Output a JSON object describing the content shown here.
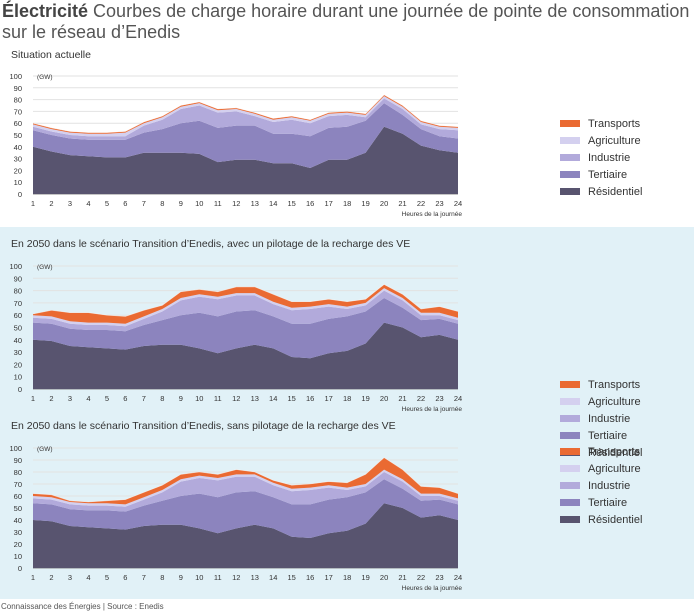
{
  "header": {
    "title_bold": "Électricité",
    "title_rest": " Courbes de charge horaire durant une journée de pointe de consommation sur le réseau d’Enedis"
  },
  "footer": "Connaissance des Énergies | Source : Enedis",
  "colors": {
    "Résidentiel": "#58546f",
    "Tertiaire": "#8c84be",
    "Industrie": "#b2aadb",
    "Agriculture": "#d4d0ef",
    "Transports": "#ea6a32"
  },
  "chart_data": [
    {
      "type": "area",
      "stacked": true,
      "title": "Situation actuelle",
      "ylabel": "(GW)",
      "xlabel": "Heures de la journée",
      "ylim": [
        0,
        100
      ],
      "yticks": [
        0,
        10,
        20,
        30,
        40,
        50,
        60,
        70,
        80,
        90,
        100
      ],
      "x": [
        1,
        2,
        3,
        4,
        5,
        6,
        7,
        8,
        9,
        10,
        11,
        12,
        13,
        14,
        15,
        16,
        17,
        18,
        19,
        20,
        21,
        22,
        23,
        24
      ],
      "legend": [
        "Transports",
        "Agriculture",
        "Industrie",
        "Tertiaire",
        "Résidentiel"
      ],
      "series": [
        {
          "name": "Résidentiel",
          "values": [
            40,
            36,
            33,
            32,
            31,
            31,
            35,
            35,
            35,
            34,
            27,
            29,
            29,
            26,
            26,
            22,
            29,
            29,
            35,
            57,
            51,
            41,
            37,
            35
          ]
        },
        {
          "name": "Tertiaire",
          "values": [
            14,
            14,
            14,
            14,
            15,
            15,
            17,
            20,
            25,
            28,
            29,
            29,
            29,
            25,
            25,
            27,
            27,
            28,
            27,
            20,
            16,
            14,
            12,
            12
          ]
        },
        {
          "name": "Industrie",
          "values": [
            3,
            3,
            3,
            3,
            3,
            3,
            6,
            8,
            12,
            13,
            13,
            12,
            8,
            10,
            12,
            11,
            10,
            10,
            3,
            4,
            5,
            4,
            6,
            7
          ]
        },
        {
          "name": "Agriculture",
          "values": [
            2,
            2,
            2,
            2,
            2,
            3,
            2,
            2,
            2,
            2,
            2,
            2,
            2,
            2,
            2,
            2,
            2,
            2,
            2,
            2,
            2,
            2,
            2,
            2
          ]
        },
        {
          "name": "Transports",
          "values": [
            1,
            1,
            1,
            1,
            1,
            1,
            1,
            1,
            1,
            1,
            1,
            1,
            1,
            1,
            1,
            1,
            1,
            1,
            1,
            1,
            1,
            1,
            1,
            1
          ]
        }
      ]
    },
    {
      "type": "area",
      "stacked": true,
      "title": "En 2050 dans le scénario Transition d’Enedis, avec un pilotage de la recharge des VE",
      "ylabel": "(GW)",
      "xlabel": "Heures de la journée",
      "ylim": [
        0,
        100
      ],
      "yticks": [
        0,
        10,
        20,
        30,
        40,
        50,
        60,
        70,
        80,
        90,
        100
      ],
      "x": [
        1,
        2,
        3,
        4,
        5,
        6,
        7,
        8,
        9,
        10,
        11,
        12,
        13,
        14,
        15,
        16,
        17,
        18,
        19,
        20,
        21,
        22,
        23,
        24
      ],
      "legend": [
        "Transports",
        "Agriculture",
        "Industrie",
        "Tertiaire",
        "Résidentiel"
      ],
      "series": [
        {
          "name": "Résidentiel",
          "values": [
            40,
            39,
            35,
            34,
            33,
            32,
            35,
            36,
            36,
            33,
            29,
            33,
            36,
            33,
            26,
            25,
            29,
            31,
            37,
            54,
            50,
            42,
            44,
            40
          ]
        },
        {
          "name": "Tertiaire",
          "values": [
            14,
            14,
            14,
            14,
            15,
            15,
            17,
            20,
            24,
            29,
            30,
            30,
            28,
            26,
            27,
            28,
            28,
            28,
            26,
            20,
            16,
            14,
            13,
            13
          ]
        },
        {
          "name": "Industrie",
          "values": [
            4,
            4,
            4,
            4,
            4,
            4,
            5,
            7,
            12,
            13,
            14,
            13,
            12,
            10,
            11,
            12,
            10,
            6,
            5,
            6,
            6,
            4,
            3,
            3
          ]
        },
        {
          "name": "Agriculture",
          "values": [
            2,
            2,
            2,
            2,
            2,
            2,
            2,
            2,
            2,
            2,
            2,
            2,
            2,
            2,
            2,
            2,
            2,
            2,
            2,
            2,
            2,
            2,
            2,
            2
          ]
        },
        {
          "name": "Transports",
          "values": [
            1,
            5,
            7,
            8,
            6,
            6,
            5,
            3,
            5,
            4,
            4,
            5,
            5,
            6,
            5,
            4,
            4,
            4,
            3,
            3,
            3,
            3,
            5,
            5
          ]
        }
      ]
    },
    {
      "type": "area",
      "stacked": true,
      "title": "En 2050 dans le scénario Transition d’Enedis, sans pilotage de la recharge des VE",
      "ylabel": "(GW)",
      "xlabel": "Heures de la journée",
      "ylim": [
        0,
        100
      ],
      "yticks": [
        0,
        10,
        20,
        30,
        40,
        50,
        60,
        70,
        80,
        90,
        100
      ],
      "x": [
        1,
        2,
        3,
        4,
        5,
        6,
        7,
        8,
        9,
        10,
        11,
        12,
        13,
        14,
        15,
        16,
        17,
        18,
        19,
        20,
        21,
        22,
        23,
        24
      ],
      "legend": [
        "Transports",
        "Agriculture",
        "Industrie",
        "Tertiaire",
        "Résidentiel"
      ],
      "series": [
        {
          "name": "Résidentiel",
          "values": [
            40,
            39,
            35,
            34,
            33,
            32,
            35,
            36,
            36,
            33,
            29,
            33,
            36,
            33,
            26,
            25,
            29,
            31,
            37,
            54,
            50,
            42,
            44,
            40
          ]
        },
        {
          "name": "Tertiaire",
          "values": [
            14,
            14,
            14,
            14,
            15,
            15,
            17,
            20,
            24,
            29,
            30,
            30,
            28,
            26,
            27,
            28,
            28,
            28,
            26,
            20,
            16,
            14,
            13,
            13
          ]
        },
        {
          "name": "Industrie",
          "values": [
            4,
            4,
            4,
            4,
            4,
            4,
            5,
            7,
            12,
            13,
            14,
            13,
            12,
            10,
            11,
            12,
            10,
            6,
            5,
            6,
            6,
            4,
            3,
            3
          ]
        },
        {
          "name": "Agriculture",
          "values": [
            2,
            2,
            2,
            2,
            2,
            2,
            2,
            2,
            2,
            2,
            2,
            2,
            2,
            2,
            2,
            2,
            2,
            2,
            2,
            2,
            2,
            2,
            2,
            2
          ]
        },
        {
          "name": "Transports",
          "values": [
            2,
            2,
            1,
            1,
            2,
            4,
            4,
            4,
            4,
            3,
            3,
            4,
            2,
            2,
            3,
            3,
            3,
            4,
            8,
            10,
            8,
            6,
            5,
            4
          ]
        }
      ]
    }
  ]
}
